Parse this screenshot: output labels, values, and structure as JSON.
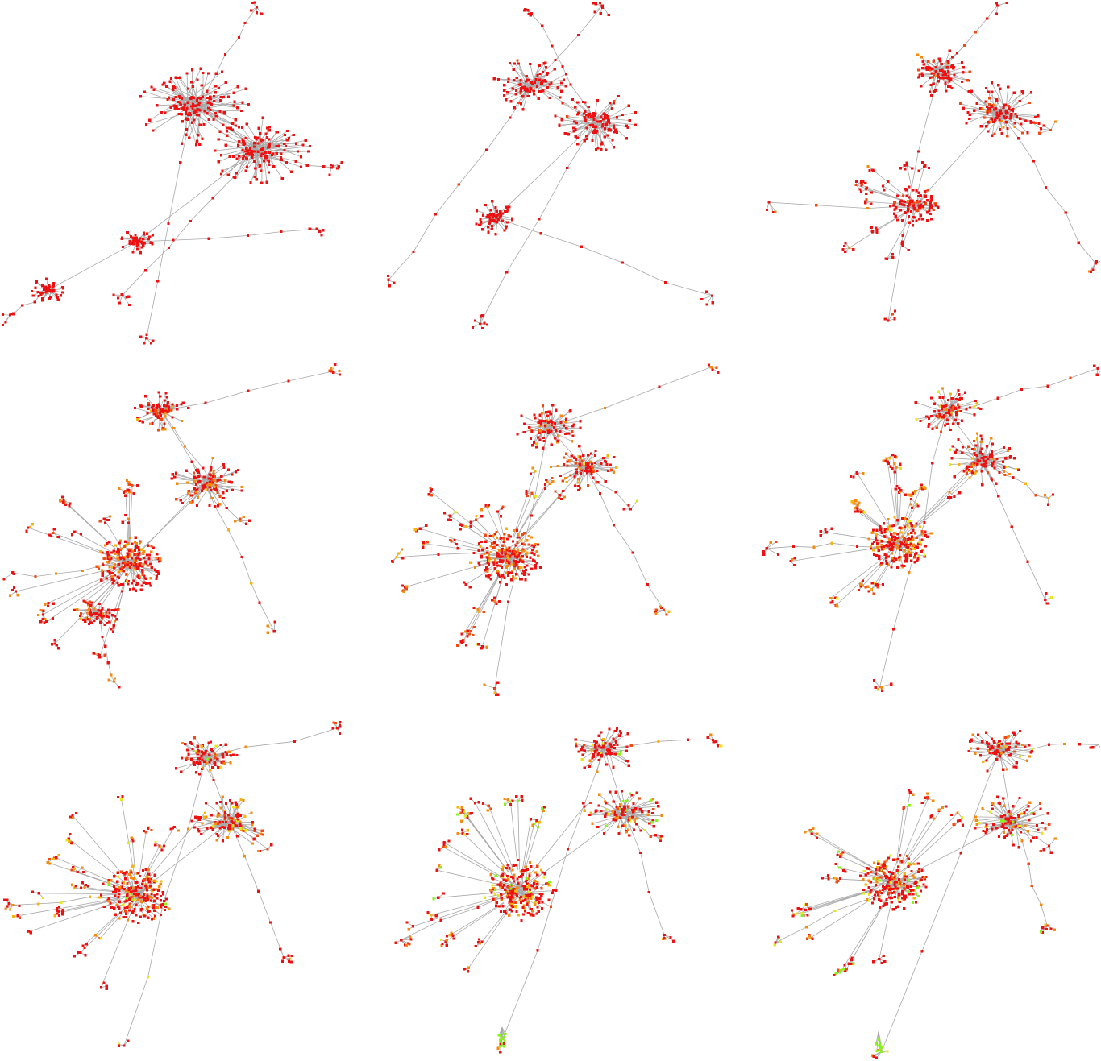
{
  "palette": {
    "edge": "#a8a8a8",
    "red": "#ee1111",
    "red_orange": "#f24a10",
    "orange": "#f58a0f",
    "amber": "#f8b40c",
    "yellow": "#e8e818",
    "green": "#88f21a",
    "background": "#ffffff"
  },
  "snapshots": [
    {
      "id": "snapshot-1",
      "color_mix": {
        "red": 1.0
      },
      "ring": false,
      "green_tail": false
    },
    {
      "id": "snapshot-2",
      "color_mix": {
        "red": 0.96,
        "red_orange": 0.04
      },
      "ring": false,
      "green_tail": false
    },
    {
      "id": "snapshot-3",
      "color_mix": {
        "red": 0.75,
        "red_orange": 0.15,
        "orange": 0.1
      },
      "ring": false,
      "green_tail": false
    },
    {
      "id": "snapshot-4",
      "color_mix": {
        "red": 0.55,
        "red_orange": 0.15,
        "orange": 0.25,
        "amber": 0.05
      },
      "ring": true,
      "green_tail": false
    },
    {
      "id": "snapshot-5",
      "color_mix": {
        "red": 0.5,
        "red_orange": 0.12,
        "orange": 0.28,
        "amber": 0.07,
        "yellow": 0.03
      },
      "ring": true,
      "green_tail": false
    },
    {
      "id": "snapshot-6",
      "color_mix": {
        "red": 0.5,
        "red_orange": 0.1,
        "orange": 0.25,
        "amber": 0.08,
        "yellow": 0.07
      },
      "ring": true,
      "green_tail": false
    },
    {
      "id": "snapshot-7",
      "color_mix": {
        "red": 0.5,
        "red_orange": 0.1,
        "orange": 0.22,
        "amber": 0.08,
        "yellow": 0.08,
        "green": 0.02
      },
      "ring": true,
      "green_tail": false
    },
    {
      "id": "snapshot-8",
      "color_mix": {
        "red": 0.48,
        "red_orange": 0.1,
        "orange": 0.2,
        "amber": 0.07,
        "yellow": 0.08,
        "green": 0.07
      },
      "ring": true,
      "green_tail": true
    },
    {
      "id": "snapshot-9",
      "color_mix": {
        "red": 0.48,
        "red_orange": 0.1,
        "orange": 0.18,
        "amber": 0.07,
        "yellow": 0.08,
        "green": 0.09
      },
      "ring": true,
      "green_tail": true
    }
  ]
}
